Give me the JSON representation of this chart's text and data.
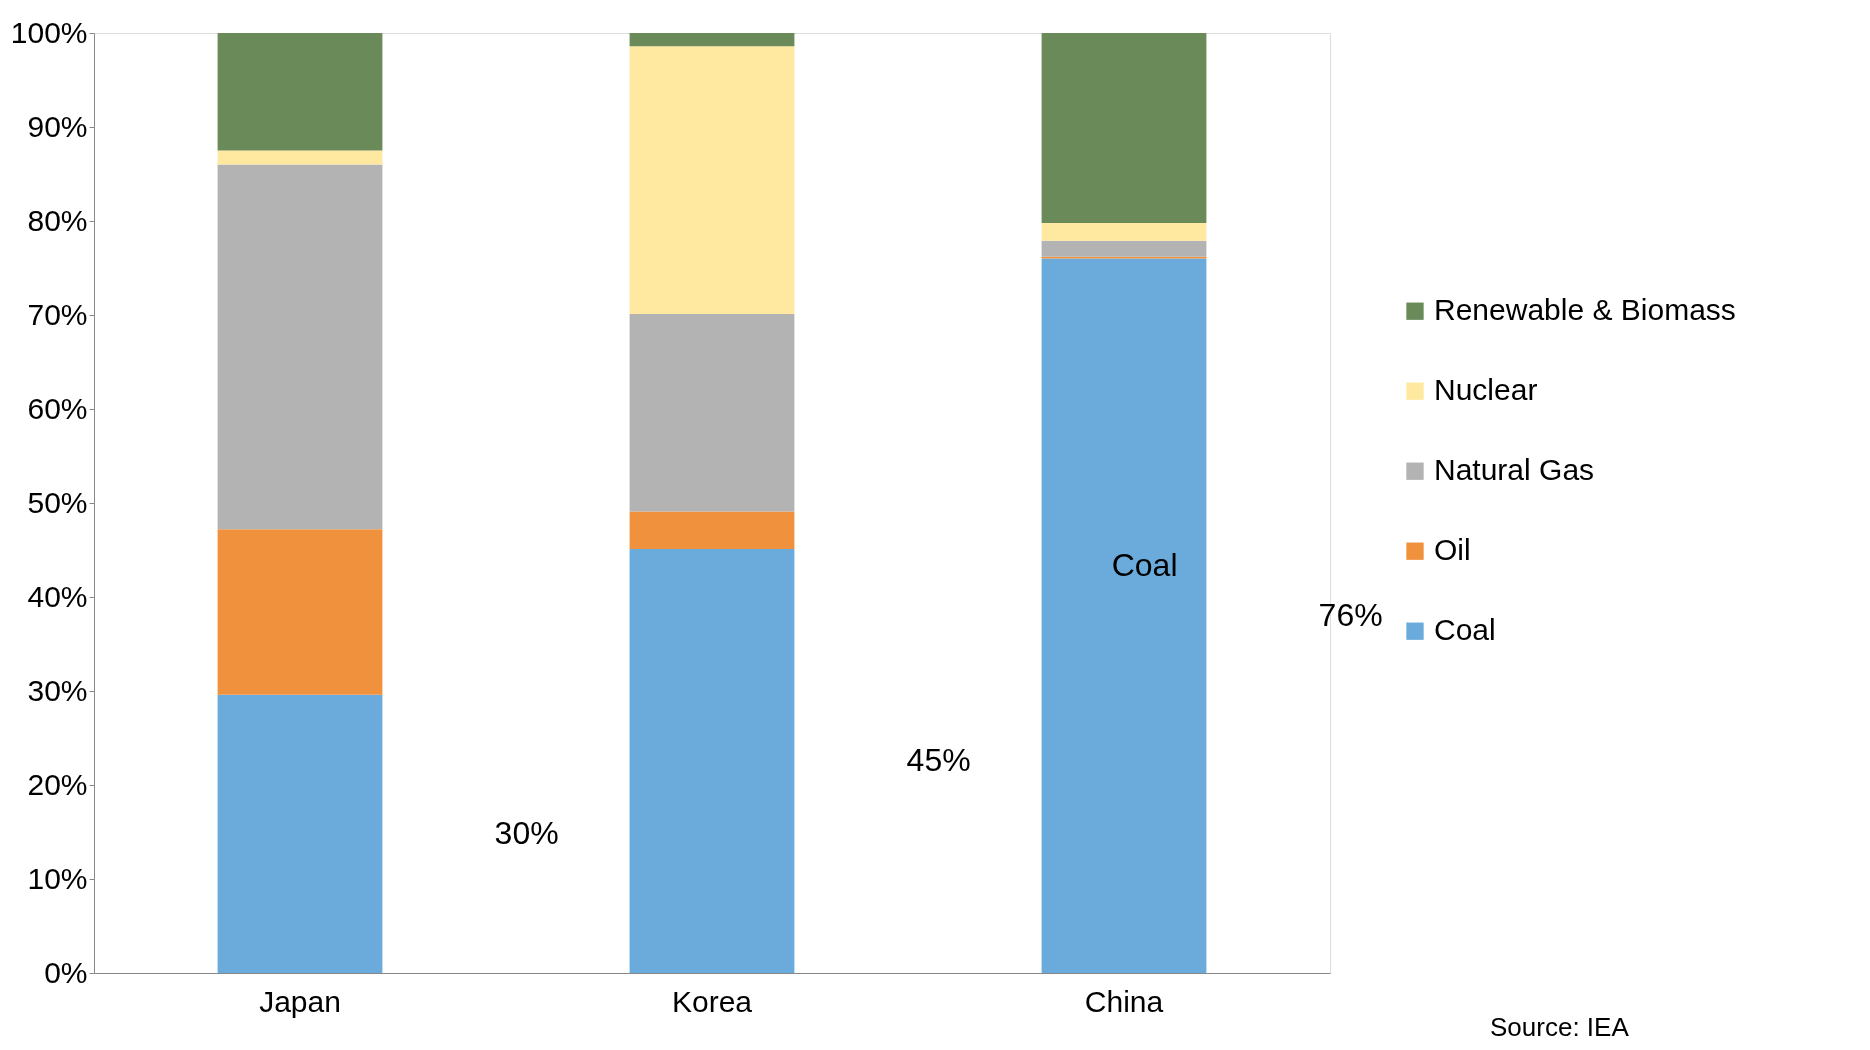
{
  "chart_data": {
    "type": "bar",
    "stacked": true,
    "categories": [
      "Japan",
      "Korea",
      "China"
    ],
    "series": [
      {
        "name": "Coal",
        "color": "#6aabdb",
        "values": [
          29.6,
          45.1,
          76.0
        ]
      },
      {
        "name": "Oil",
        "color": "#f0913e",
        "values": [
          17.6,
          4.0,
          0.2
        ]
      },
      {
        "name": "Natural Gas",
        "color": "#b3b3b3",
        "values": [
          38.8,
          21.0,
          1.7
        ]
      },
      {
        "name": "Nuclear",
        "color": "#ffe9a0",
        "values": [
          1.5,
          28.5,
          1.9
        ]
      },
      {
        "name": "Renewable & Biomass",
        "color": "#6b8a5a",
        "values": [
          12.5,
          1.4,
          20.2
        ]
      }
    ],
    "ylim": [
      0,
      100
    ],
    "yticks": [
      {
        "value": 0,
        "label": "0%"
      },
      {
        "value": 10,
        "label": "10%"
      },
      {
        "value": 20,
        "label": "20%"
      },
      {
        "value": 30,
        "label": "30%"
      },
      {
        "value": 40,
        "label": "40%"
      },
      {
        "value": 50,
        "label": "50%"
      },
      {
        "value": 60,
        "label": "60%"
      },
      {
        "value": 70,
        "label": "70%"
      },
      {
        "value": 80,
        "label": "80%"
      },
      {
        "value": 90,
        "label": "90%"
      },
      {
        "value": 100,
        "label": "100%"
      }
    ],
    "grid": false,
    "legend": "right",
    "annotations": [
      "30%",
      "45%",
      "76%",
      "Coal",
      "Source: IEA"
    ]
  }
}
